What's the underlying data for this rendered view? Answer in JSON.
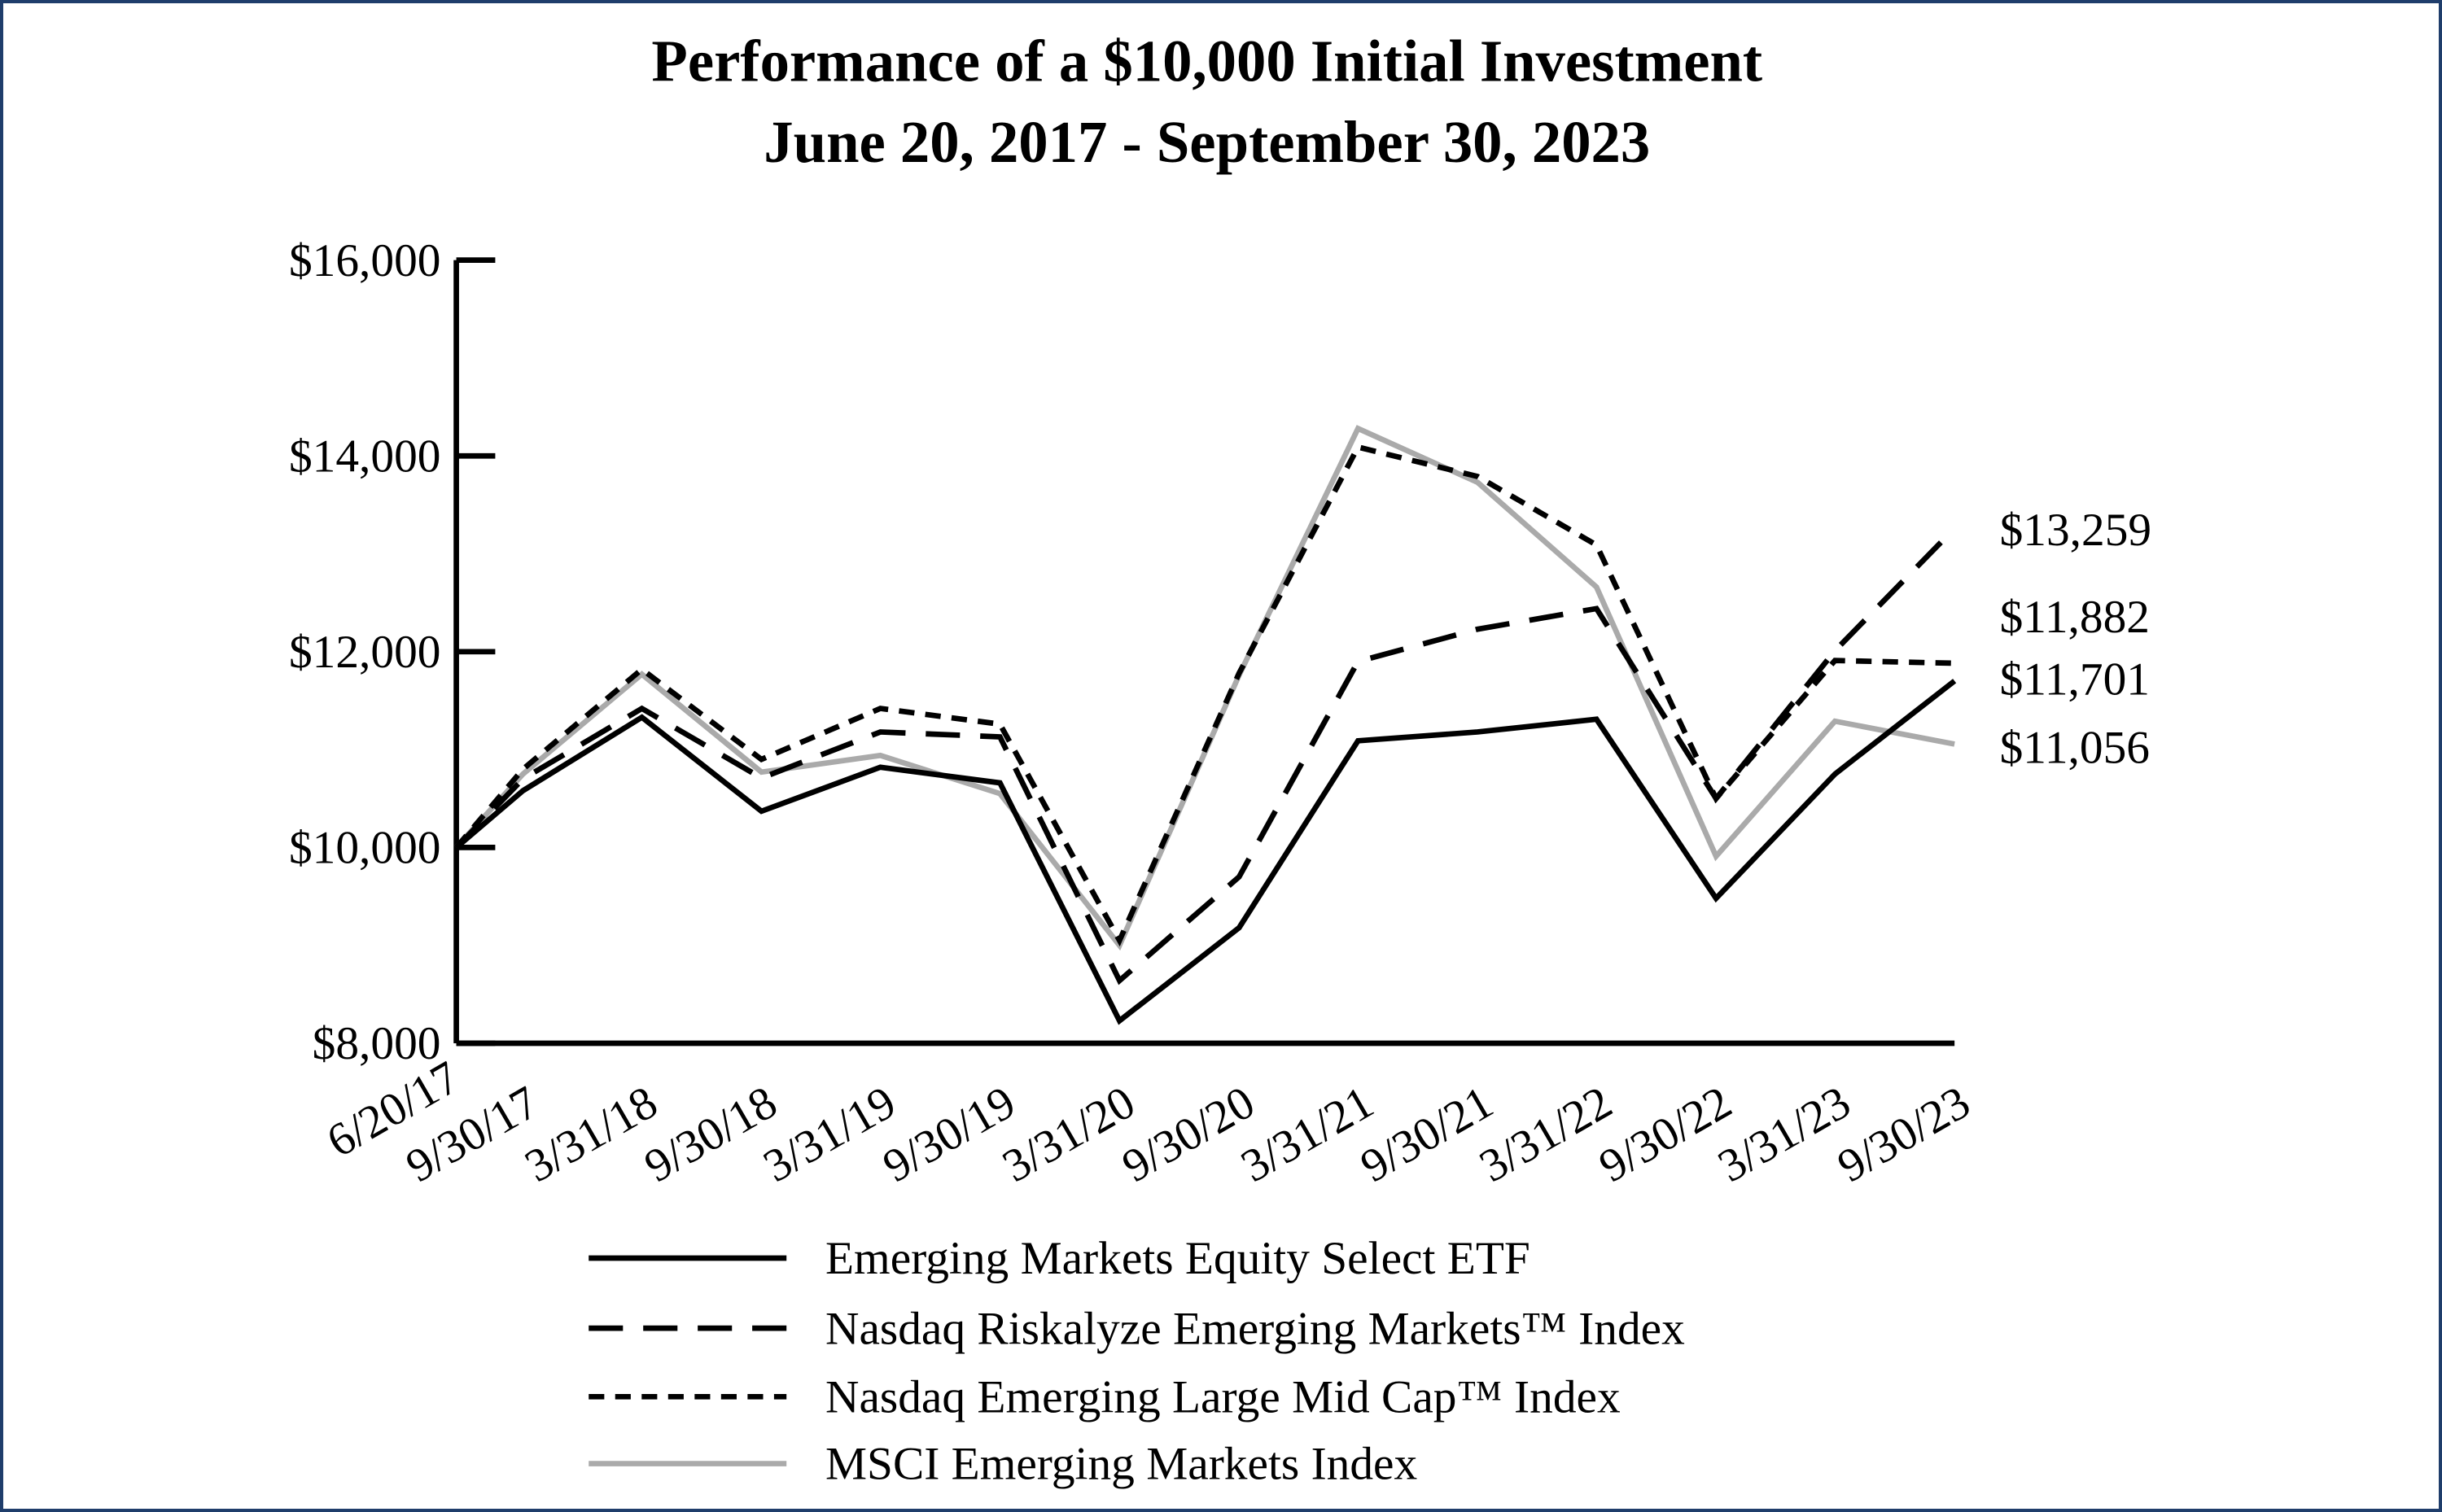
{
  "chart_data": {
    "type": "line",
    "title": "Performance of a $10,000 Initial Investment",
    "subtitle": "June 20, 2017 - September 30, 2023",
    "xlabel": "",
    "ylabel": "",
    "ylim": [
      8000,
      16000
    ],
    "yticks": [
      8000,
      10000,
      12000,
      14000,
      16000
    ],
    "ytick_labels": [
      "$8,000",
      "$10,000",
      "$12,000",
      "$14,000",
      "$16,000"
    ],
    "x": [
      "6/20/17",
      "9/30/17",
      "3/31/18",
      "9/30/18",
      "3/31/19",
      "9/30/19",
      "3/31/20",
      "9/30/20",
      "3/31/21",
      "9/30/21",
      "3/31/22",
      "9/30/22",
      "3/31/23",
      "9/30/23"
    ],
    "grid": false,
    "legend_placement": "bottom",
    "series": [
      {
        "name": "Emerging Markets Equity Select ETF",
        "style": "solid",
        "color": "#000000",
        "values": [
          10000,
          10580,
          11330,
          10370,
          10820,
          10660,
          8230,
          9180,
          11090,
          11180,
          11310,
          9480,
          10750,
          11701
        ],
        "end_label": "$11,701"
      },
      {
        "name": "Nasdaq Riskalyze Emerging Markets™ Index",
        "style": "long-dash",
        "color": "#000000",
        "values": [
          10000,
          10700,
          11420,
          10710,
          11180,
          11130,
          8640,
          9700,
          11900,
          12230,
          12440,
          10500,
          12010,
          13259
        ],
        "end_label": "$13,259"
      },
      {
        "name": "Nasdaq Emerging Large Mid Cap™ Index",
        "style": "short-dash",
        "color": "#000000",
        "values": [
          10000,
          10800,
          11820,
          10900,
          11420,
          11260,
          9050,
          11780,
          14090,
          13790,
          13090,
          10500,
          11910,
          11882
        ],
        "end_label": "$11,882"
      },
      {
        "name": "MSCI Emerging Markets Index",
        "style": "solid",
        "color": "#aaaaaa",
        "values": [
          10000,
          10750,
          11770,
          10770,
          10940,
          10550,
          9000,
          11760,
          14280,
          13730,
          12660,
          9910,
          11290,
          11056
        ],
        "end_label": "$11,056"
      }
    ]
  }
}
